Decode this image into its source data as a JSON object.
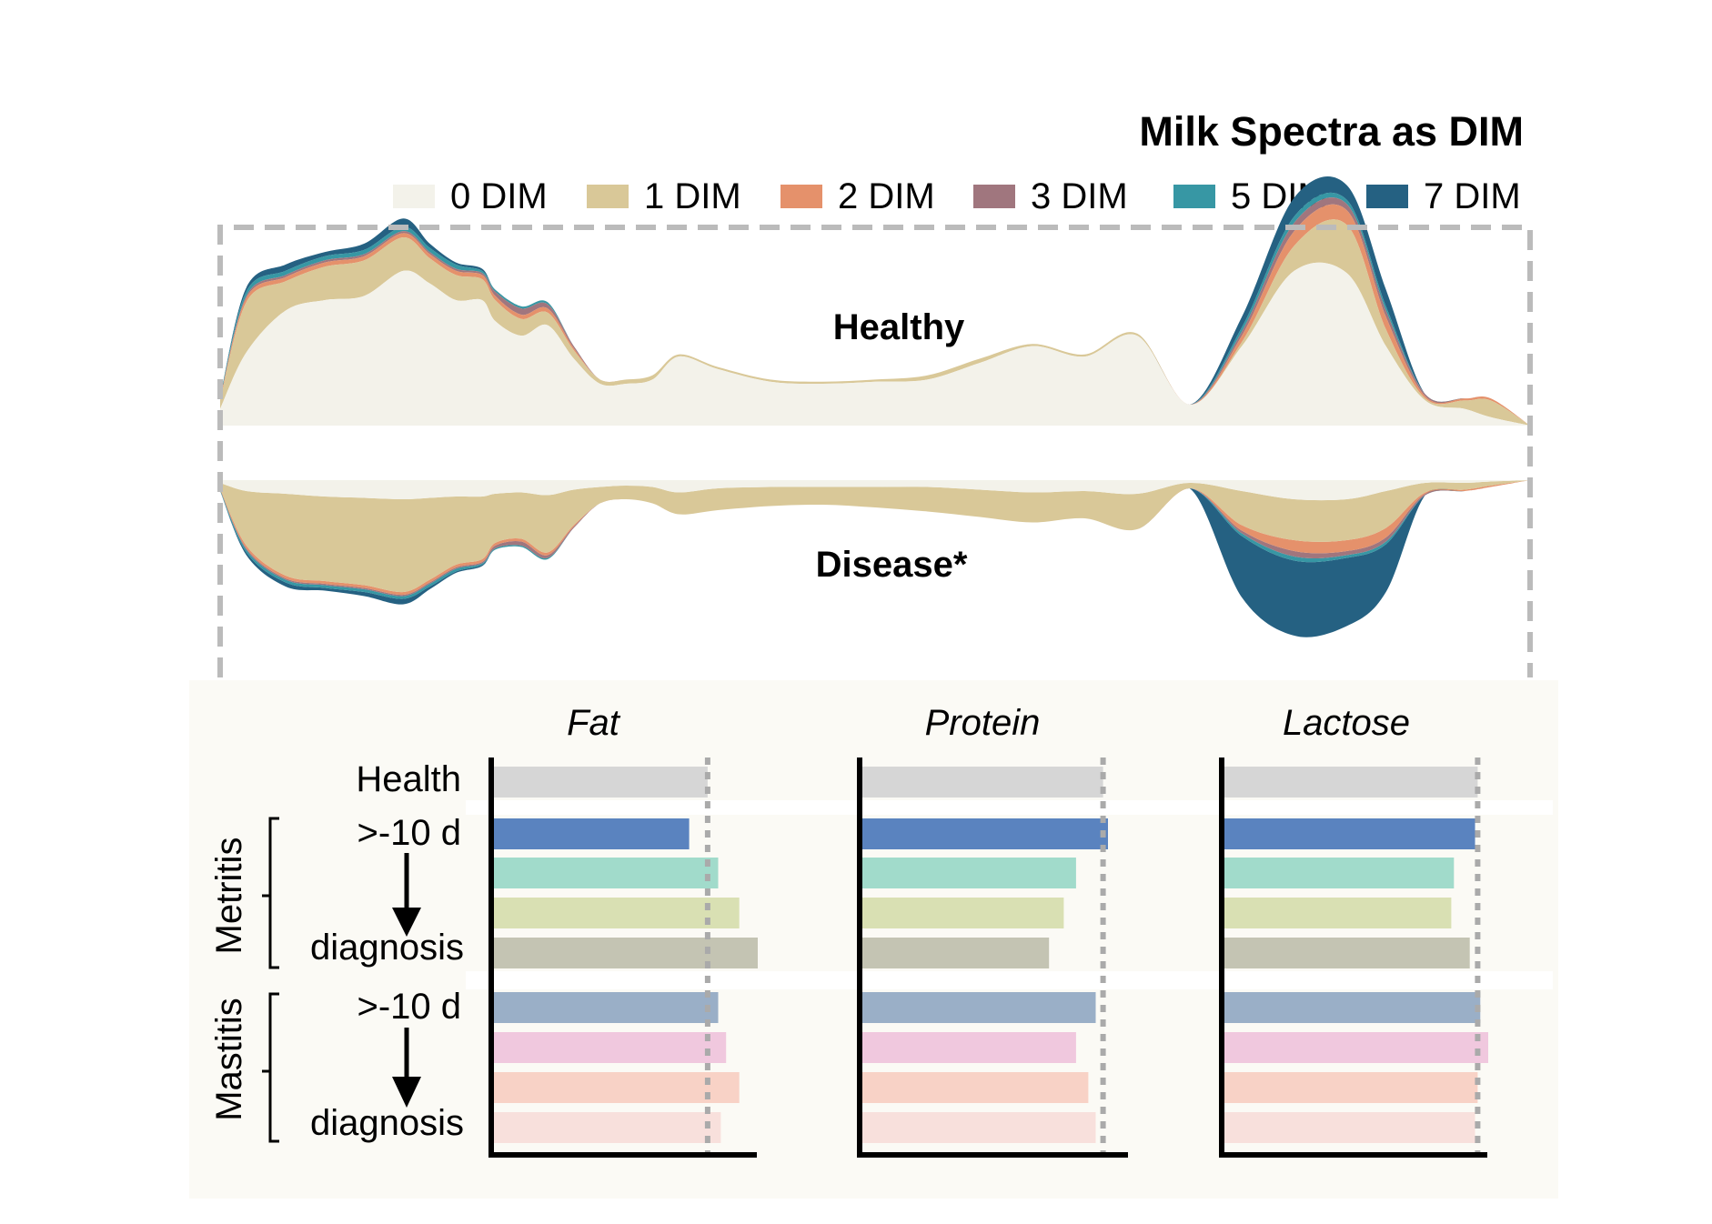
{
  "title": "Milk Spectra as DIM",
  "legend": [
    {
      "label": "0 DIM",
      "color": "#f3f2ea"
    },
    {
      "label": "1 DIM",
      "color": "#d9c898"
    },
    {
      "label": "2 DIM",
      "color": "#e5916b"
    },
    {
      "label": "3 DIM",
      "color": "#a0767e"
    },
    {
      "label": "5 DIM",
      "color": "#3797a4"
    },
    {
      "label": "7 DIM",
      "color": "#256182"
    }
  ],
  "spectra_labels": {
    "healthy": "Healthy",
    "disease": "Disease*"
  },
  "bars": {
    "panels": [
      "Fat",
      "Protein",
      "Lactose"
    ],
    "row_labels": {
      "health": "Health",
      "start": ">-10 d",
      "end": "diagnosis"
    },
    "groups": [
      "Metritis",
      "Mastitis"
    ]
  },
  "chart_data": [
    {
      "type": "area",
      "title": "Milk Spectra as DIM",
      "series_names": [
        "0 DIM",
        "1 DIM",
        "2 DIM",
        "3 DIM",
        "5 DIM",
        "7 DIM"
      ],
      "panels": [
        {
          "name": "Healthy",
          "x": [
            0,
            0.02,
            0.05,
            0.08,
            0.11,
            0.14,
            0.16,
            0.18,
            0.2,
            0.21,
            0.23,
            0.25,
            0.27,
            0.29,
            0.31,
            0.33,
            0.35,
            0.38,
            0.42,
            0.46,
            0.5,
            0.54,
            0.58,
            0.62,
            0.66,
            0.7,
            0.74,
            0.78,
            0.82,
            0.86,
            0.89,
            0.92,
            0.95,
            0.97,
            1.0
          ],
          "series": [
            {
              "name": "0 DIM",
              "values": [
                0.08,
                0.35,
                0.55,
                0.6,
                0.62,
                0.74,
                0.68,
                0.6,
                0.6,
                0.5,
                0.43,
                0.48,
                0.32,
                0.2,
                0.2,
                0.22,
                0.33,
                0.27,
                0.21,
                0.2,
                0.21,
                0.22,
                0.3,
                0.38,
                0.33,
                0.43,
                0.1,
                0.38,
                0.74,
                0.73,
                0.38,
                0.12,
                0.08,
                0.04,
                0.0
              ]
            },
            {
              "name": "1 DIM",
              "values": [
                0.04,
                0.24,
                0.14,
                0.16,
                0.17,
                0.16,
                0.12,
                0.12,
                0.1,
                0.1,
                0.08,
                0.06,
                0.04,
                0.02,
                0.02,
                0.02,
                0.01,
                0.01,
                0.01,
                0.01,
                0.01,
                0.02,
                0.02,
                0.01,
                0.01,
                0.01,
                0.0,
                0.02,
                0.12,
                0.23,
                0.08,
                0.01,
                0.04,
                0.08,
                0.0
              ]
            },
            {
              "name": "2 DIM",
              "values": [
                0.01,
                0.02,
                0.02,
                0.02,
                0.02,
                0.02,
                0.02,
                0.02,
                0.02,
                0.02,
                0.02,
                0.02,
                0.01,
                0.0,
                0.0,
                0.0,
                0.0,
                0.0,
                0.0,
                0.0,
                0.0,
                0.0,
                0.0,
                0.0,
                0.0,
                0.0,
                0.0,
                0.03,
                0.07,
                0.07,
                0.06,
                0.01,
                0.01,
                0.01,
                0.0
              ]
            },
            {
              "name": "3 DIM",
              "values": [
                0.0,
                0.01,
                0.01,
                0.01,
                0.01,
                0.01,
                0.01,
                0.01,
                0.01,
                0.02,
                0.03,
                0.02,
                0.01,
                0.0,
                0.0,
                0.0,
                0.0,
                0.0,
                0.0,
                0.0,
                0.0,
                0.0,
                0.0,
                0.0,
                0.0,
                0.0,
                0.0,
                0.02,
                0.04,
                0.03,
                0.03,
                0.01,
                0.0,
                0.0,
                0.0
              ]
            },
            {
              "name": "5 DIM",
              "values": [
                0.01,
                0.02,
                0.02,
                0.02,
                0.02,
                0.02,
                0.02,
                0.02,
                0.01,
                0.01,
                0.01,
                0.01,
                0.0,
                0.0,
                0.0,
                0.0,
                0.0,
                0.0,
                0.0,
                0.0,
                0.0,
                0.0,
                0.0,
                0.0,
                0.0,
                0.0,
                0.0,
                0.02,
                0.03,
                0.02,
                0.02,
                0.0,
                0.0,
                0.0,
                0.0
              ]
            },
            {
              "name": "7 DIM",
              "values": [
                0.0,
                0.02,
                0.03,
                0.02,
                0.03,
                0.04,
                0.02,
                0.01,
                0.01,
                0.0,
                0.0,
                0.0,
                0.0,
                0.0,
                0.0,
                0.0,
                0.0,
                0.0,
                0.0,
                0.0,
                0.0,
                0.0,
                0.0,
                0.0,
                0.0,
                0.0,
                0.0,
                0.05,
                0.09,
                0.07,
                0.08,
                0.0,
                0.0,
                0.0,
                0.0
              ]
            }
          ]
        },
        {
          "name": "Disease*",
          "x": [
            0,
            0.02,
            0.05,
            0.08,
            0.11,
            0.14,
            0.16,
            0.18,
            0.2,
            0.21,
            0.23,
            0.25,
            0.27,
            0.29,
            0.31,
            0.33,
            0.35,
            0.38,
            0.42,
            0.46,
            0.5,
            0.54,
            0.58,
            0.62,
            0.66,
            0.7,
            0.74,
            0.78,
            0.82,
            0.86,
            0.89,
            0.92,
            0.95,
            0.97,
            1.0
          ],
          "series": [
            {
              "name": "0 DIM",
              "values": [
                0.02,
                0.08,
                0.1,
                0.12,
                0.13,
                0.14,
                0.13,
                0.12,
                0.12,
                0.1,
                0.09,
                0.11,
                0.07,
                0.05,
                0.04,
                0.05,
                0.09,
                0.06,
                0.05,
                0.05,
                0.05,
                0.05,
                0.07,
                0.09,
                0.08,
                0.1,
                0.02,
                0.08,
                0.14,
                0.14,
                0.08,
                0.02,
                0.02,
                0.01,
                0.0
              ]
            },
            {
              "name": "1 DIM",
              "values": [
                0.04,
                0.4,
                0.6,
                0.62,
                0.64,
                0.68,
                0.6,
                0.5,
                0.46,
                0.36,
                0.34,
                0.42,
                0.26,
                0.12,
                0.1,
                0.12,
                0.16,
                0.16,
                0.14,
                0.13,
                0.15,
                0.18,
                0.2,
                0.22,
                0.2,
                0.26,
                0.04,
                0.25,
                0.3,
                0.3,
                0.27,
                0.07,
                0.05,
                0.03,
                0.0
              ]
            },
            {
              "name": "2 DIM",
              "values": [
                0.01,
                0.02,
                0.02,
                0.02,
                0.02,
                0.02,
                0.02,
                0.02,
                0.02,
                0.02,
                0.02,
                0.02,
                0.01,
                0.0,
                0.0,
                0.0,
                0.0,
                0.0,
                0.0,
                0.0,
                0.0,
                0.0,
                0.0,
                0.0,
                0.0,
                0.0,
                0.0,
                0.04,
                0.08,
                0.08,
                0.07,
                0.01,
                0.01,
                0.01,
                0.0
              ]
            },
            {
              "name": "3 DIM",
              "values": [
                0.0,
                0.01,
                0.01,
                0.01,
                0.01,
                0.01,
                0.01,
                0.01,
                0.01,
                0.02,
                0.03,
                0.02,
                0.01,
                0.0,
                0.0,
                0.0,
                0.0,
                0.0,
                0.0,
                0.0,
                0.0,
                0.0,
                0.0,
                0.0,
                0.0,
                0.0,
                0.0,
                0.02,
                0.04,
                0.03,
                0.03,
                0.01,
                0.0,
                0.0,
                0.0
              ]
            },
            {
              "name": "5 DIM",
              "values": [
                0.01,
                0.02,
                0.02,
                0.02,
                0.02,
                0.02,
                0.02,
                0.02,
                0.01,
                0.01,
                0.01,
                0.01,
                0.0,
                0.0,
                0.0,
                0.0,
                0.0,
                0.0,
                0.0,
                0.0,
                0.0,
                0.0,
                0.0,
                0.0,
                0.0,
                0.0,
                0.0,
                0.02,
                0.03,
                0.02,
                0.02,
                0.0,
                0.0,
                0.0,
                0.0
              ]
            },
            {
              "name": "7 DIM",
              "values": [
                0.0,
                0.02,
                0.03,
                0.02,
                0.03,
                0.04,
                0.02,
                0.01,
                0.01,
                0.0,
                0.0,
                0.0,
                0.0,
                0.0,
                0.0,
                0.0,
                0.0,
                0.0,
                0.0,
                0.0,
                0.0,
                0.0,
                0.0,
                0.0,
                0.0,
                0.0,
                0.0,
                0.45,
                0.55,
                0.5,
                0.35,
                0.0,
                0.0,
                0.0,
                0.0
              ]
            }
          ]
        }
      ]
    },
    {
      "type": "bar",
      "orientation": "horizontal",
      "panels": [
        "Fat",
        "Protein",
        "Lactose"
      ],
      "reference": [
        0.81,
        0.98,
        0.96
      ],
      "rows": [
        {
          "group": "Health",
          "color": "#d6d6d6",
          "values": [
            0.81,
            0.98,
            0.96
          ]
        },
        {
          "group": "Metritis",
          "color": "#5a83bf",
          "values": [
            0.74,
            1.0,
            0.95
          ]
        },
        {
          "group": "Metritis",
          "color": "#a1dbcb",
          "values": [
            0.85,
            0.87,
            0.87
          ]
        },
        {
          "group": "Metritis",
          "color": "#d9e0b3",
          "values": [
            0.93,
            0.82,
            0.86
          ]
        },
        {
          "group": "Metritis",
          "color": "#c4c4b3",
          "values": [
            1.0,
            0.76,
            0.93
          ]
        },
        {
          "group": "Mastitis",
          "color": "#9aafc7",
          "values": [
            0.85,
            0.95,
            0.97
          ]
        },
        {
          "group": "Mastitis",
          "color": "#f0c8de",
          "values": [
            0.88,
            0.87,
            1.0
          ]
        },
        {
          "group": "Mastitis",
          "color": "#f8d2c6",
          "values": [
            0.93,
            0.92,
            0.96
          ]
        },
        {
          "group": "Mastitis",
          "color": "#f8e0dc",
          "values": [
            0.86,
            0.95,
            0.95
          ]
        }
      ]
    }
  ]
}
